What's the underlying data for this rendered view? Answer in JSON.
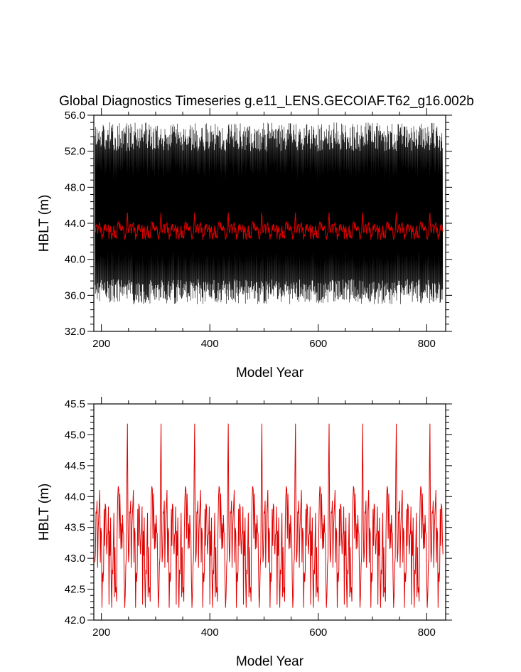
{
  "title": "Global Diagnostics Timeseries g.e11_LENS.GECOIAF.T62_g16.002b",
  "chart_data": [
    {
      "type": "line",
      "xlabel": "Model Year",
      "ylabel": "HBLT (m)",
      "xlim": [
        186,
        835
      ],
      "ylim": [
        32.0,
        56.0
      ],
      "xticks": [
        200,
        400,
        600,
        800
      ],
      "xtick_labels": [
        "200",
        "400",
        "600",
        "800"
      ],
      "yticks": [
        32.0,
        36.0,
        40.0,
        44.0,
        48.0,
        52.0,
        56.0
      ],
      "ytick_labels": [
        "32.0",
        "36.0",
        "40.0",
        "44.0",
        "48.0",
        "52.0",
        "56.0"
      ],
      "grid": false,
      "series": [
        {
          "role": "monthly",
          "color": "#000000",
          "x_start": 188,
          "x_end": 830,
          "seasonal_range": [
            34.5,
            55.5
          ],
          "cycle_years": 62
        },
        {
          "role": "annual mean",
          "color": "#e00000",
          "x_start": 188,
          "x_end": 830,
          "y_range": [
            42.2,
            45.2
          ],
          "cycle_years": 62
        }
      ]
    },
    {
      "type": "line",
      "xlabel": "Model Year",
      "ylabel": "HBLT (m)",
      "xlim": [
        186,
        835
      ],
      "ylim": [
        42.0,
        45.5
      ],
      "xticks": [
        200,
        400,
        600,
        800
      ],
      "xtick_labels": [
        "200",
        "400",
        "600",
        "800"
      ],
      "yticks": [
        42.0,
        42.5,
        43.0,
        43.5,
        44.0,
        44.5,
        45.0,
        45.5
      ],
      "ytick_labels": [
        "42.0",
        "42.5",
        "43.0",
        "43.5",
        "44.0",
        "44.5",
        "45.0",
        "45.5"
      ],
      "grid": false,
      "series": [
        {
          "role": "annual mean",
          "color": "#e00000",
          "x_start": 188,
          "x_end": 830,
          "y_range": [
            42.2,
            45.2
          ],
          "cycle_years": 62,
          "peak_years": [
            248,
            310,
            372,
            434,
            496,
            558,
            620,
            682,
            744,
            806
          ]
        }
      ]
    }
  ]
}
